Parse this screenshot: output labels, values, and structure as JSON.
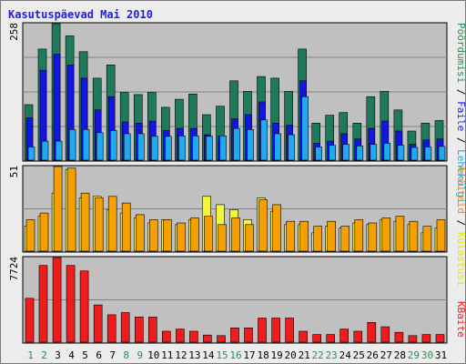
{
  "title": "Kasutuspäevad Mai 2010",
  "colors": {
    "background": "#ececec",
    "plot_bg": "#c0c0c0",
    "grid": "#808080",
    "title": "#1e1ee6",
    "weekday_tick": "#000000",
    "weekend_tick": "#2e8b57",
    "pages": "#1f7a5c",
    "files": "#1414e6",
    "hits": "#20a8f0",
    "kbytes": "#ee1c1c",
    "visits": "#f5a000",
    "sites": "#f5f53c",
    "legend_pages": "#2e8b57",
    "legend_files": "#1e1ee6",
    "legend_hits": "#20a8f0",
    "legend_visits": "#ff8c00",
    "legend_sites": "#e6e600",
    "legend_kbytes": "#ee1c1c"
  },
  "legend": {
    "top": {
      "pages": "Pöördumisi",
      "sep1": " / ",
      "files": "Faile",
      "sep2": " / ",
      "hits": "Lehekülgi"
    },
    "middle": {
      "visits": "Arvuteid",
      "sep": " / ",
      "sites": "Külastusi"
    },
    "bottom": {
      "kbytes": "KBaite"
    }
  },
  "chart_data": {
    "type": "bar",
    "categories": [
      "1",
      "2",
      "3",
      "4",
      "5",
      "6",
      "7",
      "8",
      "9",
      "10",
      "11",
      "12",
      "13",
      "14",
      "15",
      "16",
      "17",
      "18",
      "19",
      "20",
      "21",
      "22",
      "23",
      "24",
      "25",
      "26",
      "27",
      "28",
      "29",
      "30",
      "31"
    ],
    "weekend_days": [
      "1",
      "2",
      "8",
      "9",
      "15",
      "16",
      "22",
      "23",
      "29",
      "30"
    ],
    "panels": [
      {
        "name": "top",
        "ymax_label": "258",
        "ylim": [
          0,
          258
        ],
        "series": [
          {
            "name": "Pöördumisi",
            "values": [
              105,
              210,
              258,
              235,
              205,
              155,
              180,
              128,
              124,
              128,
              100,
              115,
              125,
              86,
              102,
              150,
              130,
              158,
              155,
              130,
              210,
              70,
              85,
              90,
              70,
              120,
              130,
              95,
              55,
              70,
              75
            ]
          },
          {
            "name": "Faile",
            "values": [
              80,
              170,
              200,
              180,
              155,
              95,
              120,
              72,
              70,
              74,
              56,
              60,
              60,
              48,
              46,
              78,
              86,
              110,
              70,
              66,
              150,
              32,
              36,
              50,
              40,
              60,
              74,
              55,
              30,
              38,
              40
            ]
          },
          {
            "name": "Lehekülgi",
            "values": [
              25,
              36,
              36,
              58,
              58,
              52,
              56,
              50,
              50,
              45,
              45,
              46,
              46,
              45,
              46,
              60,
              58,
              76,
              50,
              48,
              120,
              25,
              28,
              30,
              27,
              30,
              32,
              28,
              24,
              25,
              26
            ]
          }
        ]
      },
      {
        "name": "middle",
        "ymax_label": "51",
        "ylim": [
          0,
          51
        ],
        "series": [
          {
            "name": "Arvuteid",
            "values": [
              19,
              23,
              51,
              50,
              35,
              32,
              33,
              29,
              22,
              19,
              19,
              17,
              20,
              21,
              16,
              20,
              16,
              31,
              28,
              18,
              18,
              15,
              18,
              15,
              19,
              17,
              20,
              21,
              18,
              15,
              19
            ]
          },
          {
            "name": "Külastusi",
            "values": [
              15,
              21,
              35,
              49,
              32,
              33,
              25,
              23,
              20,
              17,
              19,
              16,
              19,
              33,
              28,
              25,
              19,
              32,
              24,
              16,
              16,
              11,
              15,
              14,
              17,
              16,
              19,
              18,
              16,
              11,
              14
            ]
          }
        ]
      },
      {
        "name": "bottom",
        "ymax_label": "7724",
        "ylim": [
          0,
          7724
        ],
        "series": [
          {
            "name": "KBaite",
            "values": [
              4000,
              7000,
              7724,
              7000,
              6500,
              3400,
              2500,
              2700,
              2300,
              2300,
              1000,
              1200,
              1000,
              650,
              600,
              1300,
              1300,
              2200,
              2200,
              2200,
              1000,
              700,
              700,
              1200,
              1000,
              1800,
              1400,
              900,
              600,
              700,
              700
            ]
          }
        ]
      }
    ]
  }
}
